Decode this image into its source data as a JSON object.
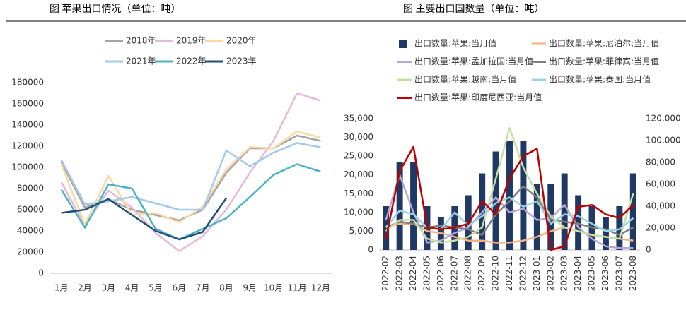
{
  "chart_data": [
    {
      "type": "line",
      "title": "图  苹果出口情况（单位：吨）",
      "categories": [
        "1月",
        "2月",
        "3月",
        "4月",
        "5月",
        "6月",
        "7月",
        "8月",
        "9月",
        "10月",
        "11月",
        "12月"
      ],
      "ylim": [
        0,
        180000
      ],
      "yticks": [
        0,
        20000,
        40000,
        60000,
        80000,
        100000,
        120000,
        140000,
        160000,
        180000
      ],
      "grid": false,
      "series": [
        {
          "name": "2018年",
          "color": "#a5a5a5",
          "values": [
            105000,
            62000,
            70000,
            60000,
            55000,
            50000,
            60000,
            95000,
            118000,
            118000,
            130000,
            125000
          ]
        },
        {
          "name": "2019年",
          "color": "#e7b9d9",
          "values": [
            86000,
            45000,
            78000,
            62000,
            38000,
            21000,
            35000,
            60000,
            95000,
            125000,
            170000,
            163000
          ]
        },
        {
          "name": "2020年",
          "color": "#fbd9a3",
          "values": [
            103000,
            46000,
            92000,
            55000,
            57000,
            48000,
            63000,
            98000,
            119000,
            118000,
            134000,
            128000
          ]
        },
        {
          "name": "2021年",
          "color": "#a4c9ea",
          "values": [
            107000,
            65000,
            68000,
            72000,
            66000,
            60000,
            60000,
            116000,
            101000,
            114000,
            123000,
            119000
          ]
        },
        {
          "name": "2022年",
          "color": "#4bb4c9",
          "values": [
            79000,
            43000,
            84000,
            80000,
            42000,
            32000,
            42000,
            52000,
            72000,
            93000,
            103000,
            96000
          ]
        },
        {
          "name": "2023年",
          "color": "#1f4e79",
          "values": [
            57000,
            60000,
            70000,
            55000,
            40000,
            32000,
            39000,
            71000,
            null,
            null,
            null,
            null
          ]
        }
      ]
    },
    {
      "type": "bar",
      "title": "图  主要出口国数量（单位：吨）",
      "categories": [
        "2022-02",
        "2022-03",
        "2022-04",
        "2022-05",
        "2022-06",
        "2022-07",
        "2022-08",
        "2022-09",
        "2022-10",
        "2022-11",
        "2022-12",
        "2023-01",
        "2023-02",
        "2023-03",
        "2023-04",
        "2023-05",
        "2023-06",
        "2023-07",
        "2023-08"
      ],
      "ylim": [
        0,
        35000
      ],
      "yticks": [
        0,
        {
          "value": 5000,
          "label": "5,000"
        },
        {
          "value": 10000,
          "label": "10,000"
        },
        {
          "value": 15000,
          "label": "15,000"
        },
        {
          "value": 20000,
          "label": "20,000"
        },
        {
          "value": 25000,
          "label": "25,000"
        },
        {
          "value": 30000,
          "label": "30,000"
        },
        {
          "value": 35000,
          "label": "35,000"
        }
      ],
      "y2lim": [
        0,
        120000
      ],
      "y2ticks": [
        0,
        {
          "value": 20000,
          "label": "20,000"
        },
        {
          "value": 40000,
          "label": "40,000"
        },
        {
          "value": 60000,
          "label": "60,000"
        },
        {
          "value": 80000,
          "label": "80,000"
        },
        {
          "value": 100000,
          "label": "100,000"
        },
        {
          "value": 120000,
          "label": "120,000"
        }
      ],
      "grid": false,
      "series": [
        {
          "name": "出口数量:苹果:当月值",
          "type": "bar",
          "axis": "y2",
          "color": "#1f3864",
          "values": [
            40000,
            80000,
            80000,
            40000,
            30000,
            40000,
            50000,
            70000,
            90000,
            100000,
            100000,
            60000,
            60000,
            70000,
            50000,
            40000,
            30000,
            40000,
            70000
          ]
        },
        {
          "name": "出口数量:苹果:尼泊尔:当月值",
          "type": "line",
          "color": "#f4b183",
          "values": [
            6000,
            7000,
            7000,
            5000,
            4500,
            3500,
            2500,
            2500,
            2000,
            2000,
            2500,
            3500,
            5000,
            6000,
            5000,
            4000,
            3500,
            3000,
            2500
          ]
        },
        {
          "name": "出口数量:苹果:孟加拉国:当月值",
          "type": "line",
          "color": "#b4a7d6",
          "values": [
            8000,
            20000,
            10000,
            2000,
            2500,
            4500,
            6000,
            10000,
            14000,
            10000,
            11000,
            8000,
            8500,
            12000,
            6000,
            3000,
            1000,
            500,
            500
          ]
        },
        {
          "name": "出口数量:苹果:菲律宾:当月值",
          "type": "line",
          "color": "#7f7f7f",
          "values": [
            6000,
            7500,
            7000,
            6000,
            6500,
            6000,
            5500,
            4000,
            9500,
            13000,
            17000,
            14000,
            8000,
            7500,
            7000,
            6000,
            5500,
            4000,
            6000
          ]
        },
        {
          "name": "出口数量:苹果:越南:当月值",
          "type": "line",
          "color": "#c5e0a5",
          "values": [
            5000,
            8000,
            8000,
            3000,
            2000,
            2500,
            3500,
            6000,
            19000,
            32500,
            22000,
            15000,
            9000,
            6000,
            5000,
            4000,
            3500,
            3000,
            15000
          ]
        },
        {
          "name": "出口数量:苹果:泰国:当月值",
          "type": "line",
          "color": "#9dd3e3",
          "values": [
            6000,
            10500,
            9500,
            6000,
            5500,
            10000,
            6500,
            9000,
            12500,
            14000,
            11500,
            13000,
            7000,
            9500,
            9000,
            7000,
            5000,
            5500,
            8500
          ]
        },
        {
          "name": "出口数量:苹果:印度尼西亚:当月值",
          "type": "line",
          "color": "#c00000",
          "values": [
            3000,
            21000,
            27500,
            6000,
            5500,
            6000,
            7000,
            13000,
            9500,
            19000,
            25000,
            27000,
            0,
            1000,
            11500,
            12000,
            9500,
            8500,
            12000
          ]
        }
      ]
    }
  ]
}
